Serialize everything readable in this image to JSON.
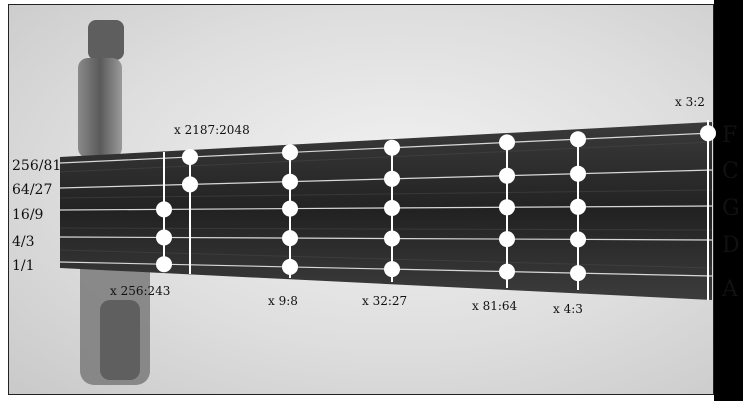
{
  "string_names": [
    "F",
    "C",
    "G",
    "D",
    "A"
  ],
  "left_ratios": [
    "256/81",
    "64/27",
    "16/9",
    "4/3",
    "1/1"
  ],
  "fret_labels": [
    "x 256:243",
    "x 2187:2048",
    "x 9:8",
    "x 32:27",
    "x 81:64",
    "x 4:3",
    "x 3:2"
  ],
  "colors": {
    "background": "#dcdcdc",
    "fretboard": "#2a2a2a",
    "dot": "#ffffff",
    "string_line": "#d8d8d8",
    "right_bar": "#000000"
  },
  "icons": [
    "tuning-peg-icon"
  ]
}
